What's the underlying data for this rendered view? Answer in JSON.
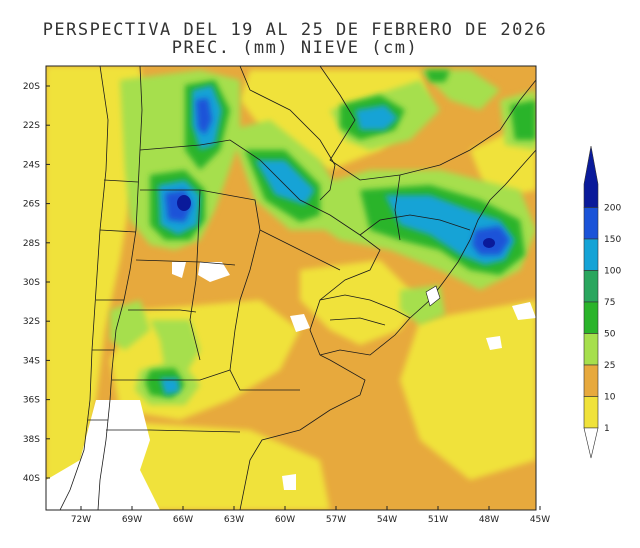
{
  "title_line1": "PERSPECTIVA DEL 19 AL 25 DE FEBRERO DE 2026",
  "title_line2": "PREC. (mm) NIEVE (cm)",
  "lat_labels": [
    "20S",
    "22S",
    "24S",
    "26S",
    "28S",
    "30S",
    "32S",
    "34S",
    "36S",
    "38S",
    "40S"
  ],
  "lon_labels": [
    "72W",
    "69W",
    "66W",
    "63W",
    "60W",
    "57W",
    "54W",
    "51W",
    "48W",
    "45W"
  ],
  "legend": {
    "levels": [
      "1",
      "10",
      "25",
      "50",
      "75",
      "100",
      "150",
      "200"
    ],
    "colors": [
      "#f0e23a",
      "#e7a93d",
      "#a6df4d",
      "#2ab42a",
      "#2aa65e",
      "#15a3d6",
      "#1a53d8",
      "#0a1a9a"
    ]
  },
  "colors": {
    "c1": "#f0e23a",
    "c10": "#e7a93d",
    "c25": "#a6df4d",
    "c50": "#2ab42a",
    "c75": "#2aa65e",
    "c100": "#15a3d6",
    "c150": "#1a53d8",
    "c200": "#0a1a9a"
  }
}
